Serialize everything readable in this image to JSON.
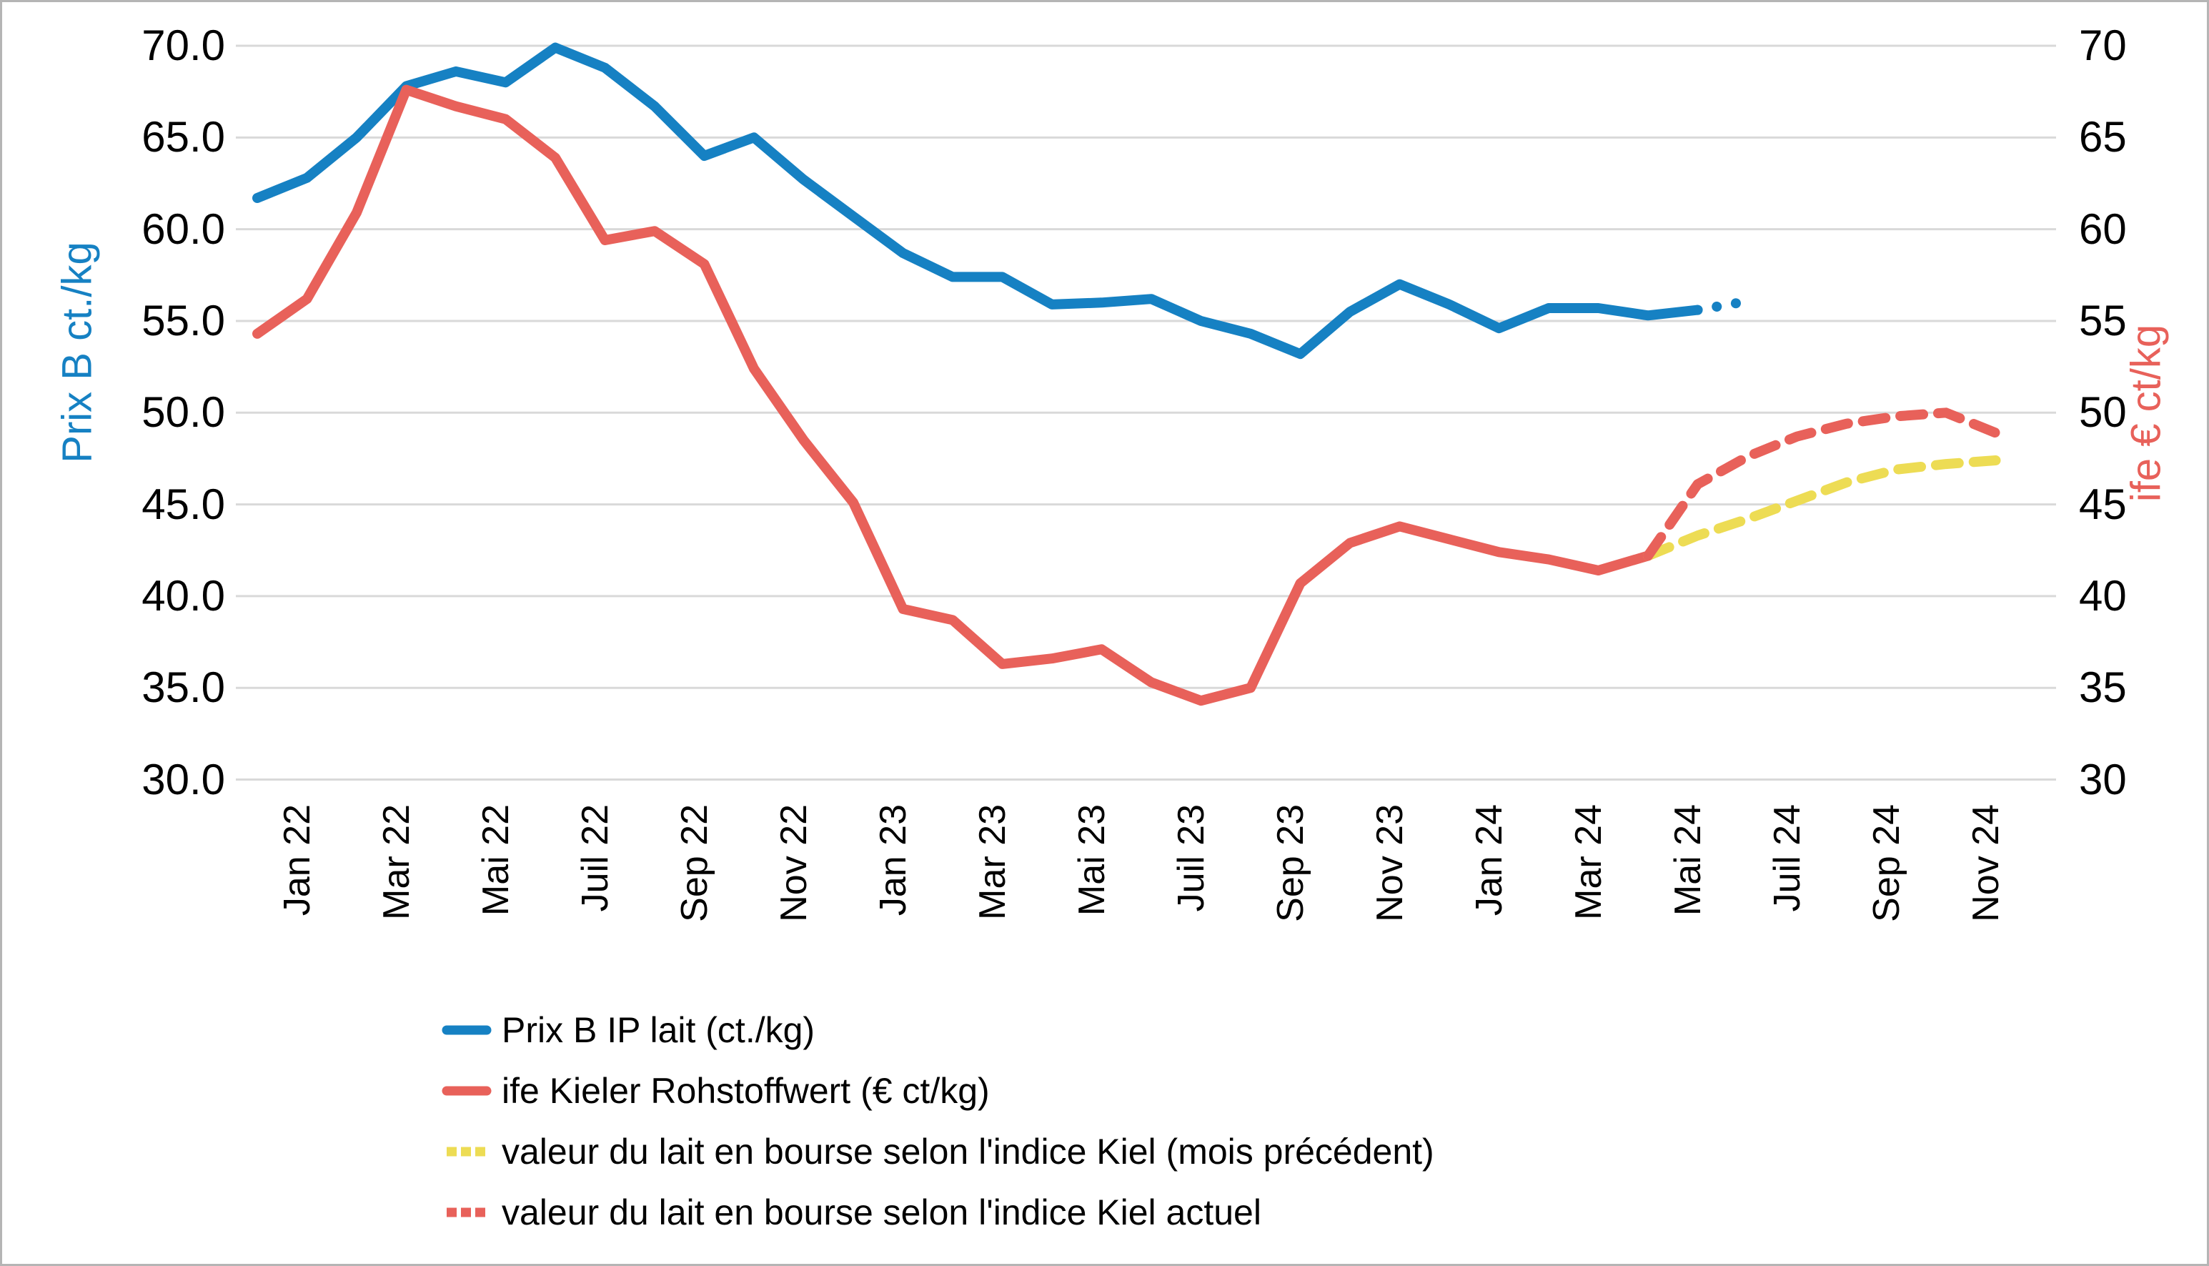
{
  "chart_data": {
    "type": "line",
    "title": "",
    "x_tick_labels": [
      "Jan 22",
      "Mar 22",
      "Mai 22",
      "Juil 22",
      "Sep 22",
      "Nov 22",
      "Jan 23",
      "Mar 23",
      "Mai 23",
      "Juil 23",
      "Sep 23",
      "Nov 23",
      "Jan 24",
      "Mar 24",
      "Mai 24",
      "Juil 24",
      "Sep 24",
      "Nov 24"
    ],
    "x_tick_month_indices": [
      0,
      2,
      4,
      6,
      8,
      10,
      12,
      14,
      16,
      18,
      20,
      22,
      24,
      26,
      28,
      30,
      32,
      34
    ],
    "months_total": 36,
    "ylim": [
      30,
      70
    ],
    "y_step": 5,
    "grid_on": true,
    "left_axis": {
      "title": "Prix B ct./kg",
      "color": "#1681c3",
      "labels": [
        "70.0",
        "65.0",
        "60.0",
        "55.0",
        "50.0",
        "45.0",
        "40.0",
        "35.0",
        "30.0"
      ]
    },
    "right_axis": {
      "title": "ife € ct/kg",
      "color": "#e8615a",
      "labels": [
        "70",
        "65",
        "60",
        "55",
        "50",
        "45",
        "40",
        "35",
        "30"
      ]
    },
    "series": [
      {
        "name": "Prix B IP lait (ct./kg)",
        "style": "solid",
        "color": "#1681c3",
        "start_month": 0,
        "values": [
          61.7,
          62.8,
          65.0,
          67.8,
          68.6,
          68.0,
          69.9,
          68.8,
          66.7,
          64.0,
          65.0,
          62.7,
          60.7,
          58.7,
          57.4,
          57.4,
          55.9,
          56.0,
          56.2,
          55.0,
          54.3,
          53.2,
          55.5,
          57.0,
          55.9,
          54.6,
          55.7,
          55.7,
          55.3,
          55.6
        ]
      },
      {
        "name": "Prix B IP lait (ct./kg) projection pointillée",
        "style": "dotted",
        "color": "#1681c3",
        "points": [
          {
            "m": 29,
            "v": 55.6
          },
          {
            "m": 29.85,
            "v": 56.0
          }
        ]
      },
      {
        "name": "ife Kieler Rohstoffwert (€ ct/kg)",
        "style": "solid",
        "color": "#e8615a",
        "start_month": 0,
        "values": [
          54.3,
          56.2,
          60.9,
          67.6,
          66.7,
          66.0,
          63.9,
          59.4,
          59.9,
          58.1,
          52.4,
          48.5,
          45.1,
          39.3,
          38.7,
          36.3,
          36.6,
          37.1,
          35.3,
          34.3,
          35.0,
          40.7,
          42.9,
          43.8,
          43.1,
          42.4,
          42.0,
          41.4,
          42.2
        ]
      },
      {
        "name": "valeur du lait en bourse selon l'indice Kiel (mois précédent)",
        "style": "dashed",
        "color": "#eddc54",
        "start_month": 28,
        "values": [
          42.2,
          43.3,
          44.2,
          45.2,
          46.2,
          46.9,
          47.2,
          47.4
        ]
      },
      {
        "name": "valeur du lait en bourse selon l'indice Kiel actuel",
        "style": "dashed",
        "color": "#e8615a",
        "start_month": 28,
        "values": [
          42.2,
          46.1,
          47.6,
          48.7,
          49.4,
          49.8,
          50.0,
          48.9
        ]
      }
    ],
    "legend": [
      {
        "label": "Prix B IP lait (ct./kg)",
        "color": "#1681c3",
        "style": "solid"
      },
      {
        "label": "ife Kieler Rohstoffwert (€ ct/kg)",
        "color": "#e8615a",
        "style": "solid"
      },
      {
        "label": "valeur du lait en bourse selon l'indice Kiel (mois précédent)",
        "color": "#eddc54",
        "style": "dashed"
      },
      {
        "label": "valeur du lait en bourse selon l'indice Kiel actuel",
        "color": "#e8615a",
        "style": "dashed"
      }
    ],
    "legend_position": "bottom-left",
    "grid_color": "#d9d9d9"
  }
}
